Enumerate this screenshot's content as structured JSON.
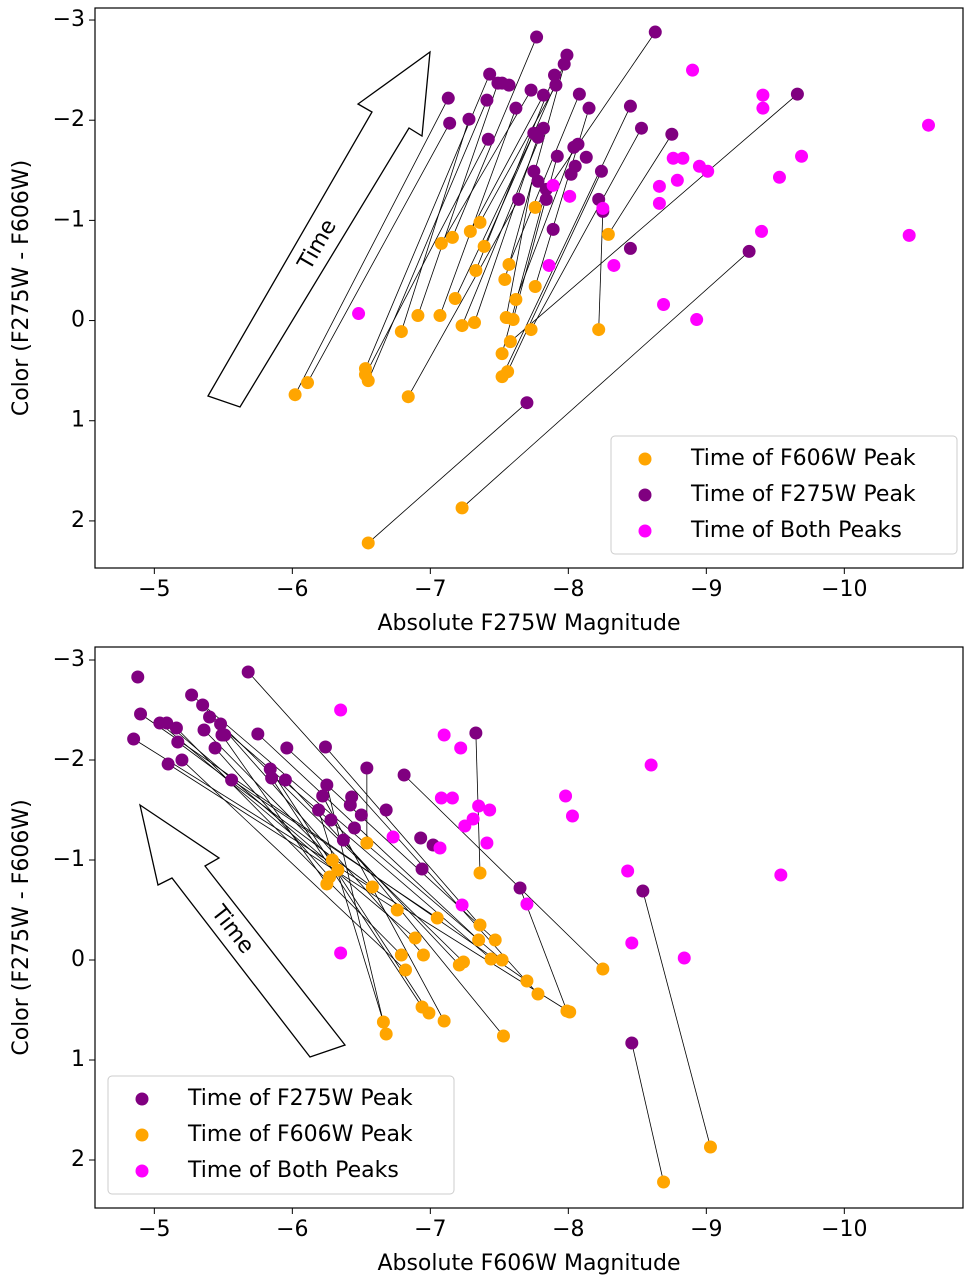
{
  "chart_data": [
    {
      "type": "scatter",
      "xlabel": "Absolute F275W Magnitude",
      "ylabel": "Color (F275W - F606W)",
      "annotation": "Time",
      "legend": "lower right",
      "xlim": [
        -4.57,
        -10.86
      ],
      "ylim": [
        2.47,
        -3.12
      ],
      "xticks": [
        {
          "value": -5,
          "label": "−5"
        },
        {
          "value": -6,
          "label": "−6"
        },
        {
          "value": -7,
          "label": "−7"
        },
        {
          "value": -8,
          "label": "−8"
        },
        {
          "value": -9,
          "label": "−9"
        },
        {
          "value": -10,
          "label": "−10"
        }
      ],
      "yticks": [
        {
          "value": -3,
          "label": "−3"
        },
        {
          "value": -2,
          "label": "−2"
        },
        {
          "value": -1,
          "label": "−1"
        },
        0,
        1,
        2
      ],
      "series": [
        {
          "name": "Time of F606W Peak",
          "color": "#ffa500",
          "x": [
            -6.02,
            -6.11,
            -6.53,
            -6.55,
            -6.53,
            -6.55,
            -6.79,
            -6.84,
            -6.91,
            -7.07,
            -7.08,
            -7.16,
            -7.18,
            -7.23,
            -7.23,
            -7.29,
            -7.33,
            -7.32,
            -7.36,
            -7.39,
            -7.52,
            -7.52,
            -7.54,
            -7.55,
            -7.56,
            -7.57,
            -7.6,
            -7.58,
            -7.62,
            -7.73,
            -7.76,
            -7.76,
            -8.22,
            -8.29
          ],
          "values": [
            0.74,
            0.62,
            0.48,
            0.6,
            0.54,
            2.22,
            0.11,
            0.76,
            -0.05,
            -0.05,
            -0.77,
            -0.83,
            -0.22,
            0.05,
            1.87,
            -0.89,
            -0.5,
            0.02,
            -0.98,
            -0.74,
            0.33,
            0.56,
            -0.41,
            -0.03,
            0.51,
            -0.56,
            -0.01,
            0.21,
            -0.21,
            0.09,
            -1.13,
            -0.34,
            0.09,
            -0.86
          ]
        },
        {
          "name": "Time of F275W Peak",
          "color": "#800080",
          "x": [
            -7.13,
            -7.14,
            -7.43,
            -7.41,
            -7.42,
            -7.7,
            -7.28,
            -7.64,
            -7.49,
            -7.62,
            -7.73,
            -7.77,
            -7.75,
            -7.82,
            -9.31,
            -7.82,
            -7.9,
            -7.78,
            -7.91,
            -7.97,
            -7.84,
            -8.45,
            -7.99,
            -7.75,
            -8.24,
            -8.08,
            -7.92,
            -9.66,
            -8.04,
            -8.53,
            -8.63,
            -8.15,
            -8.25,
            -8.75,
            -7.78,
            -7.84,
            -8.22,
            -7.89,
            -8.45,
            -8.07,
            -8.13,
            -8.05,
            -8.02,
            -7.57,
            -7.52
          ],
          "values": [
            -2.22,
            -1.97,
            -2.46,
            -2.2,
            -1.81,
            0.82,
            -2.01,
            -1.21,
            -2.37,
            -2.12,
            -2.3,
            -2.83,
            -1.87,
            -1.92,
            -0.69,
            -2.25,
            -2.45,
            -1.83,
            -2.35,
            -2.56,
            -1.31,
            -2.14,
            -2.65,
            -1.49,
            -1.49,
            -2.26,
            -1.64,
            -2.26,
            -1.73,
            -1.92,
            -2.88,
            -2.12,
            -1.09,
            -1.86,
            -1.39,
            -1.21,
            -1.21,
            -0.91,
            -0.72,
            -1.76,
            -1.63,
            -1.54,
            -1.46,
            -2.35,
            -2.37
          ]
        },
        {
          "name": "Time of Both Peaks",
          "color": "#ff00ff",
          "x": [
            -6.48,
            -8.9,
            -9.41,
            -9.41,
            -10.61,
            -9.69,
            -8.76,
            -8.83,
            -8.95,
            -9.01,
            -8.79,
            -8.66,
            -8.66,
            -9.53,
            -9.4,
            -10.47,
            -8.25,
            -8.33,
            -8.69,
            -8.93,
            -7.86,
            -7.89,
            -8.01
          ],
          "values": [
            -0.07,
            -2.5,
            -2.25,
            -2.12,
            -1.95,
            -1.64,
            -1.62,
            -1.62,
            -1.54,
            -1.49,
            -1.4,
            -1.34,
            -1.17,
            -1.43,
            -0.89,
            -0.85,
            -1.12,
            -0.55,
            -0.16,
            -0.01,
            -0.55,
            -1.35,
            -1.24
          ]
        }
      ]
    },
    {
      "type": "scatter",
      "xlabel": "Absolute F606W Magnitude",
      "ylabel": "Color (F275W - F606W)",
      "annotation": "Time",
      "legend": "lower left",
      "xlim": [
        -4.57,
        -10.86
      ],
      "ylim": [
        2.48,
        -3.13
      ],
      "xticks": [
        {
          "value": -5,
          "label": "−5"
        },
        {
          "value": -6,
          "label": "−6"
        },
        {
          "value": -7,
          "label": "−7"
        },
        {
          "value": -8,
          "label": "−8"
        },
        {
          "value": -9,
          "label": "−9"
        },
        {
          "value": -10,
          "label": "−10"
        }
      ],
      "yticks": [
        {
          "value": -3,
          "label": "−3"
        },
        {
          "value": -2,
          "label": "−2"
        },
        {
          "value": -1,
          "label": "−1"
        },
        0,
        1,
        2
      ],
      "series": [
        {
          "name": "Time of F275W Peak",
          "color": "#800080",
          "x": [
            -8.46,
            -8.54,
            -6.81,
            -4.85,
            -5.68,
            -4.9,
            -5.27,
            -6.37,
            -5.4,
            -5.96,
            -5.75,
            -6.24,
            -7.33,
            -5.48,
            -5.95,
            -6.22,
            -5.56,
            -5.84,
            -5.35,
            -5.85,
            -5.04,
            -5.2,
            -5.16,
            -5.1,
            -6.25,
            -6.19,
            -5.17,
            -5.09,
            -5.44,
            -5.49,
            -5.36,
            -6.54,
            -7.65,
            -4.88,
            -6.28,
            -6.42,
            -6.43,
            -6.45,
            -6.5,
            -6.68,
            -6.93,
            -6.94,
            -7.02,
            -5.51
          ],
          "values": [
            0.83,
            -0.69,
            -1.85,
            -2.21,
            -2.88,
            -2.46,
            -2.65,
            -1.2,
            -2.43,
            -2.12,
            -2.26,
            -2.13,
            -2.27,
            -2.36,
            -1.8,
            -1.64,
            -1.8,
            -1.91,
            -2.55,
            -1.82,
            -2.37,
            -2.0,
            -2.32,
            -1.96,
            -1.75,
            -1.5,
            -2.18,
            -2.37,
            -2.12,
            -2.25,
            -2.3,
            -1.92,
            -0.72,
            -2.83,
            -1.4,
            -1.55,
            -1.63,
            -1.32,
            -1.45,
            -1.5,
            -1.22,
            -0.91,
            -1.15,
            -2.25
          ]
        },
        {
          "name": "Time of F606W Peak",
          "color": "#ffa500",
          "x": [
            -8.69,
            -9.03,
            -8.25,
            -8.01,
            -7.78,
            -7.7,
            -7.52,
            -7.53,
            -7.44,
            -7.47,
            -7.35,
            -7.36,
            -7.36,
            -7.24,
            -7.21,
            -7.1,
            -7.05,
            -6.99,
            -6.95,
            -6.94,
            -6.89,
            -6.82,
            -6.79,
            -6.76,
            -6.68,
            -6.66,
            -6.58,
            -6.33,
            -6.27,
            -6.25,
            -6.29,
            -6.54,
            -7.99
          ],
          "values": [
            2.22,
            1.87,
            0.09,
            0.52,
            0.34,
            0.21,
            0.0,
            0.76,
            -0.01,
            -0.2,
            -0.2,
            -0.35,
            -0.87,
            0.02,
            0.05,
            0.61,
            -0.42,
            0.53,
            -0.05,
            0.47,
            -0.22,
            0.1,
            -0.05,
            -0.5,
            0.74,
            0.62,
            -0.73,
            -0.9,
            -0.83,
            -0.76,
            -1.0,
            -1.17,
            0.51
          ]
        },
        {
          "name": "Time of Both Peaks",
          "color": "#ff00ff",
          "x": [
            -6.35,
            -6.35,
            -6.73,
            -7.1,
            -7.08,
            -7.16,
            -7.07,
            -7.22,
            -7.25,
            -7.31,
            -7.35,
            -7.43,
            -7.41,
            -7.23,
            -7.7,
            -7.98,
            -8.03,
            -8.6,
            -8.43,
            -8.46,
            -8.84,
            -9.54
          ],
          "values": [
            -2.5,
            -0.07,
            -1.23,
            -2.25,
            -1.62,
            -1.62,
            -1.12,
            -2.12,
            -1.34,
            -1.41,
            -1.54,
            -1.5,
            -1.17,
            -0.55,
            -0.56,
            -1.64,
            -1.44,
            -1.95,
            -0.89,
            -0.17,
            -0.02,
            -0.85
          ]
        }
      ]
    }
  ]
}
